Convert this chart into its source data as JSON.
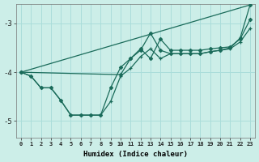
{
  "xlabel": "Humidex (Indice chaleur)",
  "bg_color": "#cceee8",
  "grid_color": "#aaddda",
  "line_color": "#1a6b5a",
  "xlim": [
    -0.5,
    23.5
  ],
  "ylim": [
    -5.35,
    -2.6
  ],
  "yticks": [
    -5,
    -4,
    -3
  ],
  "xticks": [
    0,
    1,
    2,
    3,
    4,
    5,
    6,
    7,
    8,
    9,
    10,
    11,
    12,
    13,
    14,
    15,
    16,
    17,
    18,
    19,
    20,
    21,
    22,
    23
  ],
  "series": [
    {
      "x": [
        0,
        23
      ],
      "y": [
        -4.0,
        -2.62
      ],
      "marker": null,
      "lw": 0.9
    },
    {
      "x": [
        0,
        10,
        11,
        12,
        13,
        14,
        15,
        16,
        17,
        18,
        19,
        20,
        21,
        22,
        23
      ],
      "y": [
        -4.0,
        -4.05,
        -3.72,
        -3.55,
        -3.2,
        -3.55,
        -3.62,
        -3.62,
        -3.62,
        -3.62,
        -3.58,
        -3.55,
        -3.5,
        -3.3,
        -2.62
      ],
      "marker": "D",
      "lw": 0.9
    },
    {
      "x": [
        0,
        1,
        2,
        3,
        4,
        5,
        6,
        7,
        8,
        9,
        10,
        11,
        12,
        13,
        14,
        15,
        16,
        17,
        18,
        19,
        20,
        21,
        22,
        23
      ],
      "y": [
        -4.0,
        -4.08,
        -4.32,
        -4.32,
        -4.58,
        -4.88,
        -4.88,
        -4.88,
        -4.88,
        -4.6,
        -4.08,
        -3.92,
        -3.68,
        -3.52,
        -3.72,
        -3.62,
        -3.62,
        -3.62,
        -3.62,
        -3.58,
        -3.55,
        -3.52,
        -3.38,
        -3.1
      ],
      "marker": "+",
      "lw": 0.9
    },
    {
      "x": [
        0,
        1,
        2,
        3,
        4,
        5,
        6,
        7,
        8,
        9,
        10,
        11,
        12,
        13,
        14,
        15,
        16,
        17,
        18,
        19,
        20,
        21,
        22,
        23
      ],
      "y": [
        -4.0,
        -4.08,
        -4.32,
        -4.32,
        -4.58,
        -4.88,
        -4.88,
        -4.88,
        -4.88,
        -4.32,
        -3.9,
        -3.72,
        -3.52,
        -3.72,
        -3.32,
        -3.55,
        -3.55,
        -3.55,
        -3.55,
        -3.52,
        -3.5,
        -3.48,
        -3.32,
        -2.92
      ],
      "marker": "D",
      "lw": 0.9
    }
  ]
}
